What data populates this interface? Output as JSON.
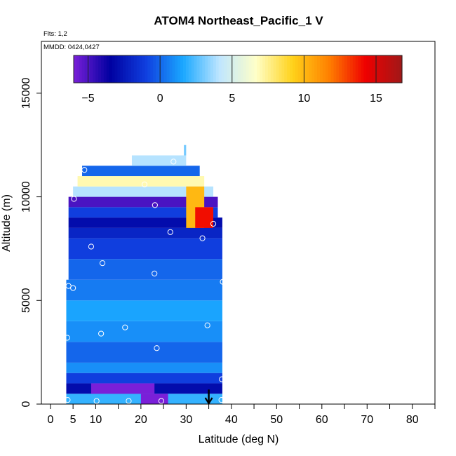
{
  "chart_data": {
    "type": "heatmap",
    "title": "ATOM4 Northeast_Pacific_1 V",
    "flights_note": "Flts: 1,2",
    "mmdd_note": "MMDD: 0424,0427",
    "xlabel": "Latitude (deg N)",
    "ylabel": "Altitude (m)",
    "xlim": [
      -2,
      85
    ],
    "ylim": [
      0,
      17500
    ],
    "xticks": [
      0,
      5,
      10,
      20,
      30,
      40,
      50,
      60,
      70,
      80
    ],
    "xticks_minor": [
      15,
      25,
      35,
      45,
      55,
      65,
      75,
      85
    ],
    "yticks": [
      0,
      5000,
      10000,
      15000
    ],
    "colorbar": {
      "range": [
        -6,
        16.8
      ],
      "ticks": [
        -5,
        0,
        5,
        10,
        15
      ],
      "colors": [
        "#7a1fd8",
        "#0000a0",
        "#1040e0",
        "#1aa8ff",
        "#bfe6ff",
        "#ffffc8",
        "#ffd21a",
        "#ff8000",
        "#ef0000",
        "#a01818"
      ]
    },
    "cells": [
      {
        "lat": [
          3.5,
          38
        ],
        "alt": [
          0,
          500
        ],
        "v": 2
      },
      {
        "lat": [
          3.5,
          38
        ],
        "alt": [
          500,
          1000
        ],
        "v": -3
      },
      {
        "lat": [
          3.5,
          38
        ],
        "alt": [
          1000,
          1500
        ],
        "v": -1
      },
      {
        "lat": [
          3.5,
          38
        ],
        "alt": [
          1500,
          2000
        ],
        "v": 1
      },
      {
        "lat": [
          3.5,
          38
        ],
        "alt": [
          2000,
          3000
        ],
        "v": 0
      },
      {
        "lat": [
          3.5,
          38
        ],
        "alt": [
          3000,
          4000
        ],
        "v": 1
      },
      {
        "lat": [
          3.5,
          38
        ],
        "alt": [
          4000,
          5000
        ],
        "v": 1.5
      },
      {
        "lat": [
          3.5,
          38
        ],
        "alt": [
          5000,
          6000
        ],
        "v": 0.5
      },
      {
        "lat": [
          4,
          38
        ],
        "alt": [
          6000,
          7000
        ],
        "v": 0
      },
      {
        "lat": [
          4,
          38
        ],
        "alt": [
          7000,
          8000
        ],
        "v": -1
      },
      {
        "lat": [
          4,
          38
        ],
        "alt": [
          8000,
          8500
        ],
        "v": -2
      },
      {
        "lat": [
          4,
          38
        ],
        "alt": [
          8500,
          9000
        ],
        "v": -3
      },
      {
        "lat": [
          4,
          37
        ],
        "alt": [
          9000,
          9500
        ],
        "v": -1
      },
      {
        "lat": [
          4,
          37
        ],
        "alt": [
          9500,
          10000
        ],
        "v": -5
      },
      {
        "lat": [
          5,
          36
        ],
        "alt": [
          10000,
          10500
        ],
        "v": 4
      },
      {
        "lat": [
          6,
          34
        ],
        "alt": [
          10500,
          11000
        ],
        "v": 7
      },
      {
        "lat": [
          7,
          33
        ],
        "alt": [
          11000,
          11500
        ],
        "v": 0
      },
      {
        "lat": [
          18,
          30
        ],
        "alt": [
          11500,
          12000
        ],
        "v": 4
      },
      {
        "lat": [
          29.5,
          30
        ],
        "alt": [
          12000,
          12500
        ],
        "v": 3
      },
      {
        "lat": [
          9,
          23
        ],
        "alt": [
          500,
          1000
        ],
        "v": -6
      },
      {
        "lat": [
          20,
          26
        ],
        "alt": [
          0,
          500
        ],
        "v": -6
      },
      {
        "lat": [
          30,
          34
        ],
        "alt": [
          8500,
          10500
        ],
        "v": 10
      },
      {
        "lat": [
          32,
          36
        ],
        "alt": [
          8500,
          9500
        ],
        "v": 14
      }
    ],
    "obs_points": [
      {
        "lat": 3.8,
        "alt": 200
      },
      {
        "lat": 10.2,
        "alt": 150
      },
      {
        "lat": 17.3,
        "alt": 150
      },
      {
        "lat": 24.5,
        "alt": 150
      },
      {
        "lat": 37.8,
        "alt": 200
      },
      {
        "lat": 37.9,
        "alt": 1200
      },
      {
        "lat": 3.7,
        "alt": 3200
      },
      {
        "lat": 11.2,
        "alt": 3400
      },
      {
        "lat": 16.5,
        "alt": 3700
      },
      {
        "lat": 23.5,
        "alt": 2700
      },
      {
        "lat": 34.7,
        "alt": 3800
      },
      {
        "lat": 4,
        "alt": 5700
      },
      {
        "lat": 5,
        "alt": 5600
      },
      {
        "lat": 11.5,
        "alt": 6800
      },
      {
        "lat": 23,
        "alt": 6300
      },
      {
        "lat": 38.1,
        "alt": 5900
      },
      {
        "lat": 9,
        "alt": 7600
      },
      {
        "lat": 26.5,
        "alt": 8300
      },
      {
        "lat": 33.6,
        "alt": 8000
      },
      {
        "lat": 36,
        "alt": 8700
      },
      {
        "lat": 38.8,
        "alt": 8300
      },
      {
        "lat": 5.2,
        "alt": 9900
      },
      {
        "lat": 23.1,
        "alt": 9600
      },
      {
        "lat": 20.8,
        "alt": 10600
      },
      {
        "lat": 7.5,
        "alt": 11300
      },
      {
        "lat": 27.2,
        "alt": 11700
      }
    ],
    "arrow_lat": 35,
    "grid": false,
    "legend": "top colorbar"
  }
}
